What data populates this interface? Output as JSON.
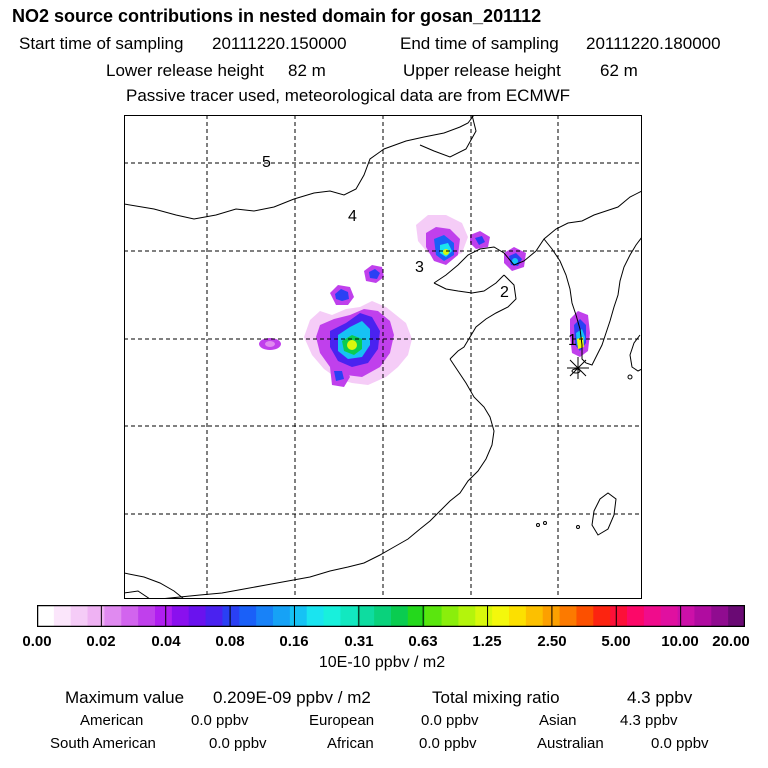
{
  "header": {
    "title": "NO2 source contributions in nested domain for gosan_201112",
    "start_label": "Start time of sampling",
    "start_value": "20111220.150000",
    "end_label": "End time of sampling",
    "end_value": "20111220.180000",
    "lower_label": "Lower release height",
    "lower_value": "82 m",
    "upper_label": "Upper release height",
    "upper_value": "62 m",
    "note": "Passive tracer used, meteorological data are from ECMWF"
  },
  "chart_data": {
    "type": "heatmap",
    "title": "NO2 source contributions in nested domain for gosan_201112",
    "colorbar": {
      "unit_label": "10E-10 ppbv / m2",
      "tick_labels": [
        "0.00",
        "0.02",
        "0.04",
        "0.08",
        "0.16",
        "0.31",
        "0.63",
        "1.25",
        "2.50",
        "5.00",
        "10.00",
        "20.00"
      ],
      "colors": [
        "#ffffff",
        "#fbe6fb",
        "#f5ccf7",
        "#efb2f3",
        "#e08af0",
        "#d264ee",
        "#c040ec",
        "#b01ef0",
        "#8a10ee",
        "#6a12ee",
        "#4a22f0",
        "#2a40f4",
        "#1a60f8",
        "#1882f8",
        "#16a2f6",
        "#16c2f4",
        "#1ae4f0",
        "#18f0dc",
        "#12e8c0",
        "#0edca0",
        "#0ad27c",
        "#0acc50",
        "#24d81c",
        "#5ae60e",
        "#8aee0c",
        "#b4f40c",
        "#d8f80c",
        "#f4f80c",
        "#fce000",
        "#fcc000",
        "#fca000",
        "#fc7a00",
        "#fc5000",
        "#fc2410",
        "#fc1038",
        "#fc0868",
        "#f00c8c",
        "#e010a0",
        "#cc10a8",
        "#b00ca0",
        "#900c90",
        "#6a0a74"
      ]
    },
    "region_labels": [
      "1",
      "2",
      "3",
      "4",
      "5"
    ],
    "release_site": "gosan"
  },
  "summary": {
    "max_label": "Maximum value",
    "max_value": "0.209E-09 ppbv / m2",
    "total_label": "Total mixing ratio",
    "total_value": "4.3 ppbv",
    "american_label": "American",
    "american_value": "0.0 ppbv",
    "european_label": "European",
    "european_value": "0.0 ppbv",
    "asian_label": "Asian",
    "asian_value": "4.3 ppbv",
    "south_american_label": "South American",
    "south_american_value": "0.0 ppbv",
    "african_label": "African",
    "african_value": "0.0 ppbv",
    "australian_label": "Australian",
    "australian_value": "0.0 ppbv"
  }
}
